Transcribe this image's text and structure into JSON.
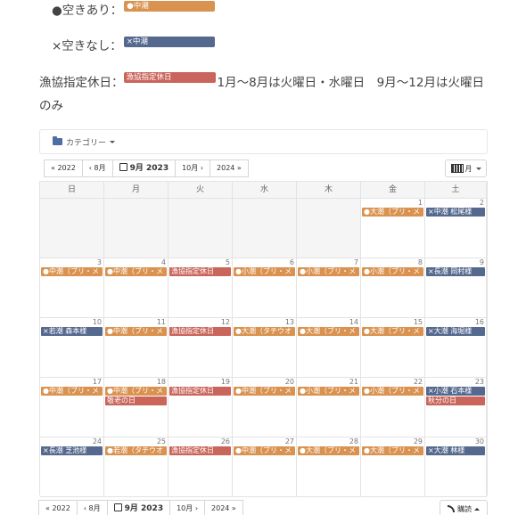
{
  "legend": {
    "available_label": "●空きあり：",
    "available_chip": "●中潮",
    "full_label": "×空きなし：",
    "full_chip": "×中潮"
  },
  "notice": {
    "label": "漁協指定休日：",
    "chip": "漁協指定休日",
    "text": "1月～8月は火曜日・水曜日　9月～12月は火曜日のみ"
  },
  "calendar": {
    "category_label": "カテゴリー",
    "nav": {
      "prev_year": "« 2022",
      "prev_month": "‹ 8月",
      "current": "9月 2023",
      "next_month": "10月 ›",
      "next_year": "2024 »"
    },
    "view_label": "月",
    "subscribe_label": "購読",
    "weekdays": [
      "日",
      "月",
      "火",
      "水",
      "木",
      "金",
      "土"
    ],
    "weeks": [
      [
        {
          "day": "",
          "events": []
        },
        {
          "day": "",
          "events": []
        },
        {
          "day": "",
          "events": []
        },
        {
          "day": "",
          "events": []
        },
        {
          "day": "",
          "events": []
        },
        {
          "day": "1",
          "events": [
            {
              "text": "●大潮（ブリ・メ",
              "color": "orange"
            }
          ]
        },
        {
          "day": "2",
          "events": [
            {
              "text": "×中潮 松尾様",
              "color": "blue"
            }
          ]
        }
      ],
      [
        {
          "day": "3",
          "events": [
            {
              "text": "●中潮（ブリ・メ",
              "color": "orange"
            }
          ]
        },
        {
          "day": "4",
          "events": [
            {
              "text": "●中潮（ブリ・メ",
              "color": "orange"
            }
          ]
        },
        {
          "day": "5",
          "events": [
            {
              "text": "漁協指定休日",
              "color": "red"
            }
          ]
        },
        {
          "day": "6",
          "events": [
            {
              "text": "●小潮（ブリ・メ",
              "color": "orange"
            }
          ]
        },
        {
          "day": "7",
          "events": [
            {
              "text": "●小潮（ブリ・メ",
              "color": "orange"
            }
          ]
        },
        {
          "day": "8",
          "events": [
            {
              "text": "●小潮（ブリ・メ",
              "color": "orange"
            }
          ]
        },
        {
          "day": "9",
          "events": [
            {
              "text": "×長潮 岡村様",
              "color": "blue"
            }
          ]
        }
      ],
      [
        {
          "day": "10",
          "events": [
            {
              "text": "×若潮 森本様",
              "color": "blue"
            }
          ]
        },
        {
          "day": "11",
          "events": [
            {
              "text": "●中潮（ブリ・メ",
              "color": "orange"
            }
          ]
        },
        {
          "day": "12",
          "events": [
            {
              "text": "漁協指定休日",
              "color": "red"
            }
          ]
        },
        {
          "day": "13",
          "events": [
            {
              "text": "●大潮（タチウオ",
              "color": "orange"
            }
          ]
        },
        {
          "day": "14",
          "events": [
            {
              "text": "●大潮（ブリ・メ",
              "color": "orange"
            }
          ]
        },
        {
          "day": "15",
          "events": [
            {
              "text": "●大潮（ブリ・メ",
              "color": "orange"
            }
          ]
        },
        {
          "day": "16",
          "events": [
            {
              "text": "×大潮 海堀様",
              "color": "blue"
            }
          ]
        }
      ],
      [
        {
          "day": "17",
          "events": [
            {
              "text": "●中潮（ブリ・メ",
              "color": "orange"
            }
          ]
        },
        {
          "day": "18",
          "events": [
            {
              "text": "●中潮（ブリ・メ",
              "color": "orange"
            },
            {
              "text": "敬老の日",
              "color": "red"
            }
          ]
        },
        {
          "day": "19",
          "events": [
            {
              "text": "漁協指定休日",
              "color": "red"
            }
          ]
        },
        {
          "day": "20",
          "events": [
            {
              "text": "●中潮（ブリ・メ",
              "color": "orange"
            }
          ]
        },
        {
          "day": "21",
          "events": [
            {
              "text": "●小潮（ブリ・メ",
              "color": "orange"
            }
          ]
        },
        {
          "day": "22",
          "events": [
            {
              "text": "●小潮（ブリ・メ",
              "color": "orange"
            }
          ]
        },
        {
          "day": "23",
          "events": [
            {
              "text": "×小潮 石本様",
              "color": "blue"
            },
            {
              "text": "秋分の日",
              "color": "red"
            }
          ]
        }
      ],
      [
        {
          "day": "24",
          "events": [
            {
              "text": "×長潮 芝池様",
              "color": "blue"
            }
          ]
        },
        {
          "day": "25",
          "events": [
            {
              "text": "●若潮（タチウオ",
              "color": "orange"
            }
          ]
        },
        {
          "day": "26",
          "events": [
            {
              "text": "漁協指定休日",
              "color": "red"
            }
          ]
        },
        {
          "day": "27",
          "events": [
            {
              "text": "●中潮（ブリ・メ",
              "color": "orange"
            }
          ]
        },
        {
          "day": "28",
          "events": [
            {
              "text": "●大潮（ブリ・メ",
              "color": "orange"
            }
          ]
        },
        {
          "day": "29",
          "events": [
            {
              "text": "●大潮（ブリ・メ",
              "color": "orange"
            }
          ]
        },
        {
          "day": "30",
          "events": [
            {
              "text": "×大潮 林様",
              "color": "blue"
            }
          ]
        }
      ]
    ]
  },
  "colors": {
    "orange": "#d9924f",
    "blue": "#55698e",
    "red": "#c9655b"
  }
}
